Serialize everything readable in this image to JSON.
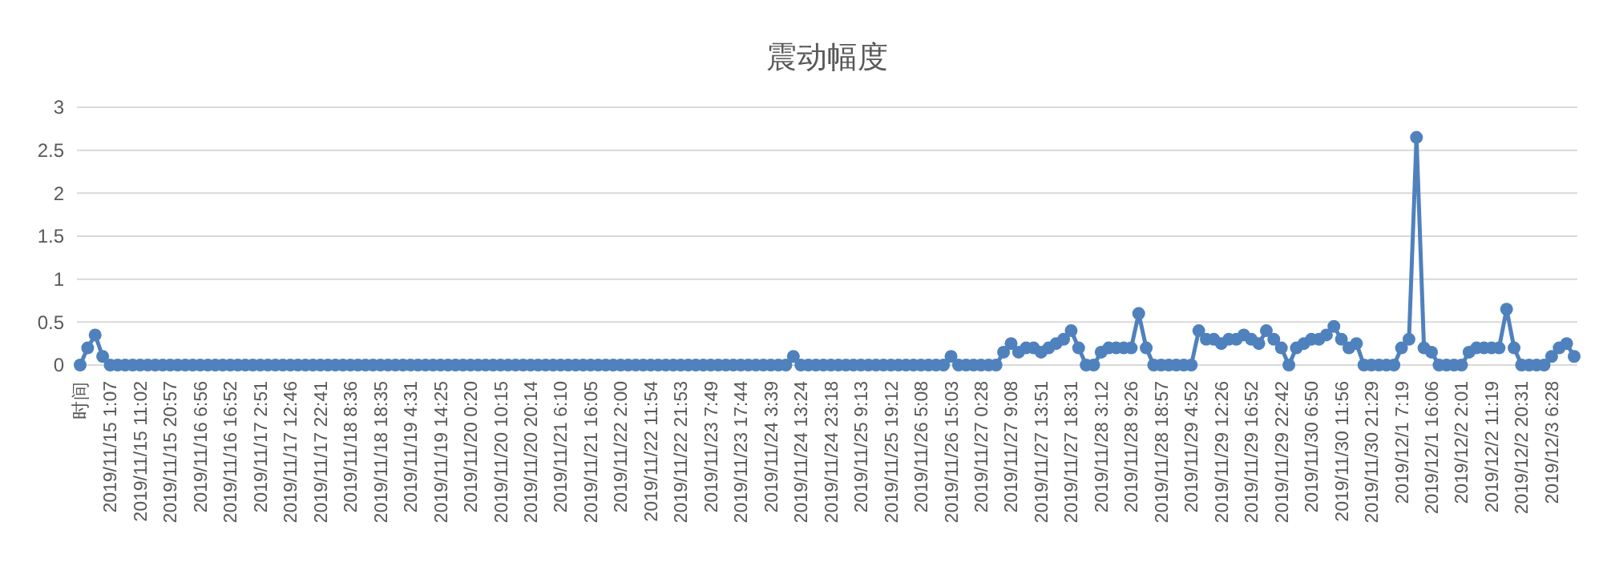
{
  "chart_data": {
    "type": "line",
    "title": "震动幅度",
    "categories": [
      "时间",
      null,
      null,
      null,
      "2019/11/15 1:07",
      null,
      null,
      null,
      "2019/11/15 11:02",
      null,
      null,
      null,
      "2019/11/15 20:57",
      null,
      null,
      null,
      "2019/11/16 6:56",
      null,
      null,
      null,
      "2019/11/16 16:52",
      null,
      null,
      null,
      "2019/11/17 2:51",
      null,
      null,
      null,
      "2019/11/17 12:46",
      null,
      null,
      null,
      "2019/11/17 22:41",
      null,
      null,
      null,
      "2019/11/18 8:36",
      null,
      null,
      null,
      "2019/11/18 18:35",
      null,
      null,
      null,
      "2019/11/19 4:31",
      null,
      null,
      null,
      "2019/11/19 14:25",
      null,
      null,
      null,
      "2019/11/20 0:20",
      null,
      null,
      null,
      "2019/11/20 10:15",
      null,
      null,
      null,
      "2019/11/20 20:14",
      null,
      null,
      null,
      "2019/11/21 6:10",
      null,
      null,
      null,
      "2019/11/21 16:05",
      null,
      null,
      null,
      "2019/11/22 2:00",
      null,
      null,
      null,
      "2019/11/22 11:54",
      null,
      null,
      null,
      "2019/11/22 21:53",
      null,
      null,
      null,
      "2019/11/23 7:49",
      null,
      null,
      null,
      "2019/11/23 17:44",
      null,
      null,
      null,
      "2019/11/24 3:39",
      null,
      null,
      null,
      "2019/11/24 13:24",
      null,
      null,
      null,
      "2019/11/24 23:18",
      null,
      null,
      null,
      "2019/11/25 9:13",
      null,
      null,
      null,
      "2019/11/25 19:12",
      null,
      null,
      null,
      "2019/11/26 5:08",
      null,
      null,
      null,
      "2019/11/26 15:03",
      null,
      null,
      null,
      "2019/11/27 0:28",
      null,
      null,
      null,
      "2019/11/27 9:08",
      null,
      null,
      null,
      "2019/11/27 13:51",
      null,
      null,
      null,
      "2019/11/27 18:31",
      null,
      null,
      null,
      "2019/11/28 3:12",
      null,
      null,
      null,
      "2019/11/28 9:26",
      null,
      null,
      null,
      "2019/11/28 18:57",
      null,
      null,
      null,
      "2019/11/29 4:52",
      null,
      null,
      null,
      "2019/11/29 12:26",
      null,
      null,
      null,
      "2019/11/29 16:52",
      null,
      null,
      null,
      "2019/11/29 22:42",
      null,
      null,
      null,
      "2019/11/30 6:50",
      null,
      null,
      null,
      "2019/11/30 11:56",
      null,
      null,
      null,
      "2019/11/30 21:29",
      null,
      null,
      null,
      "2019/12/1 7:19",
      null,
      null,
      null,
      "2019/12/1 16:06",
      null,
      null,
      null,
      "2019/12/2 2:01",
      null,
      null,
      null,
      "2019/12/2 11:19",
      null,
      null,
      null,
      "2019/12/2 20:31",
      null,
      null,
      null,
      "2019/12/3 6:28",
      null,
      null,
      null
    ],
    "series": [
      {
        "color": "#4f81bd",
        "values": [
          0,
          0.2,
          0.35,
          0.1,
          0,
          0,
          0,
          0,
          0,
          0,
          0,
          0,
          0,
          0,
          0,
          0,
          0,
          0,
          0,
          0,
          0,
          0,
          0,
          0,
          0,
          0,
          0,
          0,
          0,
          0,
          0,
          0,
          0,
          0,
          0,
          0,
          0,
          0,
          0,
          0,
          0,
          0,
          0,
          0,
          0,
          0,
          0,
          0,
          0,
          0,
          0,
          0,
          0,
          0,
          0,
          0,
          0,
          0,
          0,
          0,
          0,
          0,
          0,
          0,
          0,
          0,
          0,
          0,
          0,
          0,
          0,
          0,
          0,
          0,
          0,
          0,
          0,
          0,
          0,
          0,
          0,
          0,
          0,
          0,
          0,
          0,
          0,
          0,
          0,
          0,
          0,
          0,
          0,
          0,
          0,
          0.1,
          0,
          0,
          0,
          0,
          0,
          0,
          0,
          0,
          0,
          0,
          0,
          0,
          0,
          0,
          0,
          0,
          0,
          0,
          0,
          0,
          0.1,
          0,
          0,
          0,
          0,
          0,
          0,
          0.15,
          0.25,
          0.15,
          0.2,
          0.2,
          0.15,
          0.2,
          0.25,
          0.3,
          0.4,
          0.2,
          0,
          0,
          0.15,
          0.2,
          0.2,
          0.2,
          0.2,
          0.6,
          0.2,
          0,
          0,
          0,
          0,
          0,
          0,
          0.4,
          0.3,
          0.3,
          0.25,
          0.3,
          0.3,
          0.35,
          0.3,
          0.25,
          0.4,
          0.3,
          0.2,
          0,
          0.2,
          0.25,
          0.3,
          0.3,
          0.35,
          0.45,
          0.3,
          0.2,
          0.25,
          0,
          0,
          0,
          0,
          0,
          0.2,
          0.3,
          2.65,
          0.2,
          0.15,
          0,
          0,
          0,
          0,
          0.15,
          0.2,
          0.2,
          0.2,
          0.2,
          0.65,
          0.2,
          0,
          0,
          0,
          0,
          0.1,
          0.2,
          0.25,
          0.1
        ]
      }
    ],
    "ylim": [
      0,
      3
    ],
    "yticks": [
      0,
      0.5,
      1,
      1.5,
      2,
      2.5,
      3
    ],
    "grid": "y",
    "marker": "circle",
    "line_style": "solid"
  }
}
